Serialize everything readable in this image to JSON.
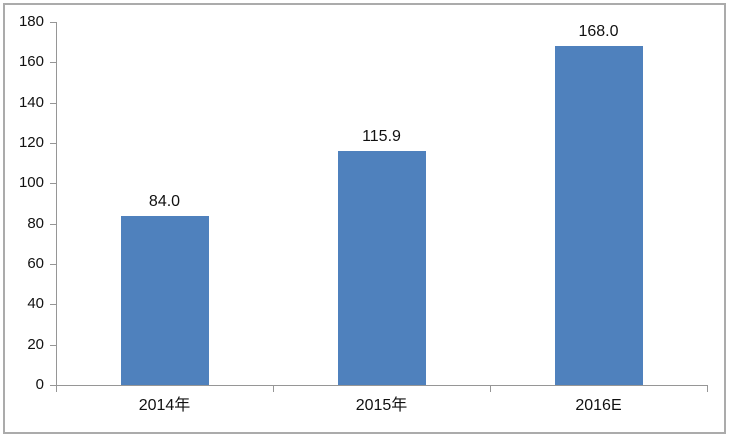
{
  "chart_data": {
    "type": "bar",
    "title": "",
    "categories": [
      "2014年",
      "2015年",
      "2016E"
    ],
    "values": [
      84.0,
      115.9,
      168.0
    ],
    "value_labels": [
      "84.0",
      "115.9",
      "168.0"
    ],
    "xlabel": "",
    "ylabel": "",
    "ylim": [
      0,
      180
    ],
    "yticks": [
      0,
      20,
      40,
      60,
      80,
      100,
      120,
      140,
      160,
      180
    ],
    "grid": false,
    "legend": "none",
    "colors": {
      "bar": "#4f81bd",
      "axis": "#969696",
      "frame": "#ababab",
      "text": "#111111",
      "background": "#ffffff"
    }
  }
}
